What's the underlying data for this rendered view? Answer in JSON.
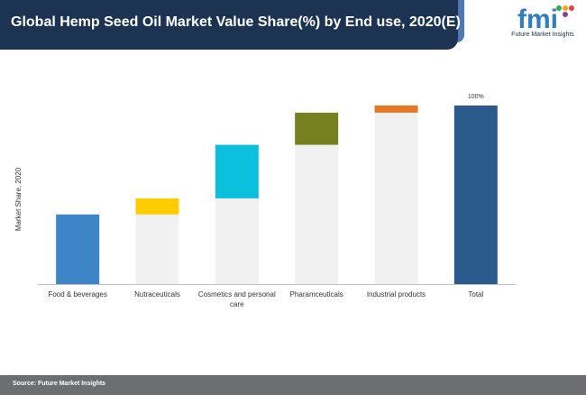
{
  "header": {
    "title": "Global Hemp Seed Oil Market Value Share(%) by End use, 2020(E)"
  },
  "logo": {
    "text": "fmi",
    "subtext": "Future Market Insights",
    "colors": [
      "#2d7fc1",
      "#3ba54a",
      "#f3a21c",
      "#e8403a",
      "#8b3d97"
    ]
  },
  "footer": {
    "source": "Source: Future Market Insights"
  },
  "chart_data": {
    "type": "bar",
    "subtype": "waterfall",
    "title": "Global Hemp Seed Oil Market Value Share(%) by End use, 2020(E)",
    "ylabel": "Market Share, 2020",
    "xlabel": "",
    "ylim": [
      0,
      100
    ],
    "categories": [
      [
        "Food & beverages"
      ],
      [
        "Nutraceuticals"
      ],
      [
        "Cosmetics and personal",
        "care"
      ],
      [
        "Pharamceuticals"
      ],
      [
        "Industrial products"
      ],
      [
        "Total"
      ]
    ],
    "series": [
      {
        "values": [
          39,
          9,
          30,
          18,
          4,
          100
        ]
      }
    ],
    "colors": [
      "#3d85c6",
      "#ffcc00",
      "#0bbfdd",
      "#76801f",
      "#e87722",
      "#2a5a8c"
    ],
    "connector_color": "#f1f1f1",
    "data_labels": [
      {
        "index": 5,
        "text": "100%"
      }
    ],
    "grid": false,
    "legend": "none"
  }
}
